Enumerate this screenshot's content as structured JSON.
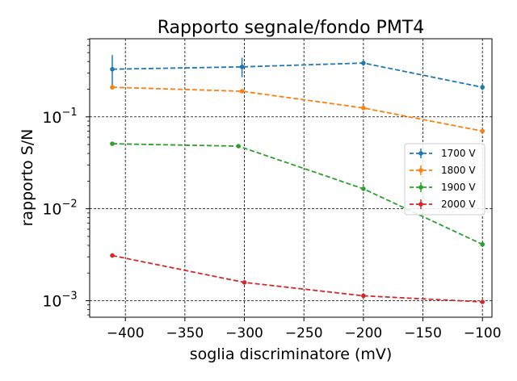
{
  "chart_data": {
    "type": "line",
    "title": "Rapporto segnale/fondo PMT4",
    "xlabel": "soglia discriminatore  (mV)",
    "ylabel": "rapporto S/N",
    "xlim": [
      -430,
      -92
    ],
    "ylim_log10": [
      -3.18,
      -0.15
    ],
    "yscale": "log",
    "grid": true,
    "grid_style": "dashed",
    "legend_position": "right",
    "x_ticks": [
      -400,
      -350,
      -300,
      -250,
      -200,
      -150,
      -100
    ],
    "x_tick_labels": [
      "−400",
      "−350",
      "−300",
      "−250",
      "−200",
      "−150",
      "−100"
    ],
    "y_ticks_log10": [
      -1,
      -2,
      -3
    ],
    "y_tick_labels": [
      {
        "base": "10",
        "exp": "−1"
      },
      {
        "base": "10",
        "exp": "−2"
      },
      {
        "base": "10",
        "exp": "−3"
      }
    ],
    "series": [
      {
        "name": "1700 V",
        "color": "#1f77b4",
        "x": [
          -411,
          -302,
          -200,
          -100
        ],
        "y": [
          0.33,
          0.35,
          0.385,
          0.21
        ],
        "yerr_low": [
          0.2,
          0.27,
          0.36,
          0.195
        ],
        "yerr_high": [
          0.47,
          0.44,
          0.41,
          0.225
        ]
      },
      {
        "name": "1800 V",
        "color": "#ff7f0e",
        "x": [
          -411,
          -302,
          -200,
          -100
        ],
        "y": [
          0.21,
          0.19,
          0.125,
          0.07
        ],
        "yerr_low": [
          0.2,
          0.185,
          0.122,
          0.068
        ],
        "yerr_high": [
          0.22,
          0.195,
          0.128,
          0.072
        ]
      },
      {
        "name": "1900 V",
        "color": "#2ca02c",
        "x": [
          -411,
          -305,
          -200,
          -100
        ],
        "y": [
          0.051,
          0.048,
          0.0165,
          0.0041
        ],
        "yerr_low": [
          0.05,
          0.047,
          0.016,
          0.004
        ],
        "yerr_high": [
          0.052,
          0.049,
          0.017,
          0.0042
        ]
      },
      {
        "name": "2000 V",
        "color": "#d62728",
        "x": [
          -411,
          -300,
          -200,
          -100
        ],
        "y": [
          0.0031,
          0.00158,
          0.00113,
          0.00097
        ],
        "yerr_low": [
          0.003,
          0.00155,
          0.00111,
          0.00095
        ],
        "yerr_high": [
          0.0032,
          0.00161,
          0.00115,
          0.00099
        ]
      }
    ]
  }
}
